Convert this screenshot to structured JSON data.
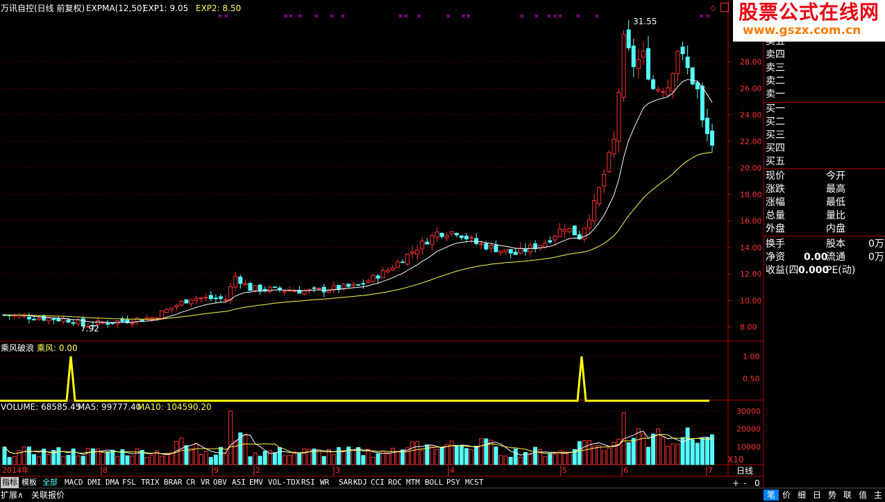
{
  "title_bar": {
    "stock": "万讯自控(日线 前复权)",
    "indicator": "EXPMA(12,50)",
    "exp1": "EXP1: 9.05",
    "exp2": "EXP2: 8.50"
  },
  "price_labels": {
    "high": "31.55",
    "low": "7.92"
  },
  "x_axis": {
    "start": "2014年",
    "months": [
      "8",
      "9",
      "2",
      "3",
      "4",
      "5",
      "6",
      "7"
    ]
  },
  "y_axis_price": [
    "28.00",
    "26.00",
    "24.00",
    "22.00",
    "20.00",
    "18.00",
    "16.00",
    "14.00",
    "12.00",
    "10.00",
    "8.00"
  ],
  "indicator_panel": {
    "name": "乘风破浪",
    "value": "乘风: 0.00",
    "ticks": [
      "1.00",
      "0.50"
    ]
  },
  "volume_panel": {
    "vol": "VOLUME: 68585.45",
    "ma5": "MA5: 99777.40",
    "ma10": "MA10: 104590.20",
    "ticks": [
      "30000",
      "20000",
      "10000"
    ],
    "unit": "X10"
  },
  "order_book": {
    "sell": [
      "卖五",
      "卖四",
      "卖三",
      "卖二",
      "卖一"
    ],
    "buy": [
      "买一",
      "买二",
      "买三",
      "买四",
      "买五"
    ]
  },
  "quote": {
    "left": [
      "现价",
      "涨跌",
      "涨幅",
      "总量",
      "外盘"
    ],
    "right": [
      "今开",
      "最高",
      "最低",
      "量比",
      "内盘"
    ]
  },
  "fundamentals": {
    "turnover_label": "换手",
    "share_label": "股本",
    "share_value": "0万",
    "netasset_label": "净资",
    "netasset_value": "0.00",
    "float_label": "流通",
    "float_value": "0万",
    "eps_label": "收益(四",
    "eps_value": "0.000",
    "pe_label": "PE(动)"
  },
  "tabs": [
    "指标",
    "模板",
    "全部",
    "MACD",
    "DMI",
    "DMA",
    "FSL",
    "TRIX",
    "BRAR",
    "CR",
    "VR",
    "OBV",
    "ASI",
    "EMV",
    "VOL-TDX",
    "RSI",
    "WR",
    "SAR",
    "KDJ",
    "CCI",
    "ROC",
    "MTM",
    "BOLL",
    "PSY",
    "MCST"
  ],
  "bottom_tabs": [
    "扩展∧",
    "关联报价"
  ],
  "period_label": "日线",
  "zoom_controls": [
    "+",
    "-",
    "0"
  ],
  "right_tabs": [
    "笔",
    "价",
    "细",
    "日",
    "势",
    "联",
    "值",
    "主"
  ],
  "watermark": {
    "title": "股票公式在线网",
    "url": "www.gszx.com.cn"
  },
  "colors": {
    "up": "#ff3232",
    "down": "#54ffff",
    "exp1": "#ffffff",
    "exp2": "#ffff50",
    "grid": "#8b0000",
    "marker": "#ff00ff"
  }
}
